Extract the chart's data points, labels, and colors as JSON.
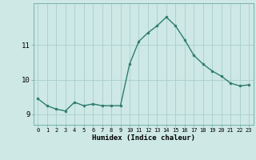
{
  "x": [
    0,
    1,
    2,
    3,
    4,
    5,
    6,
    7,
    8,
    9,
    10,
    11,
    12,
    13,
    14,
    15,
    16,
    17,
    18,
    19,
    20,
    21,
    22,
    23
  ],
  "y": [
    9.45,
    9.25,
    9.15,
    9.1,
    9.35,
    9.25,
    9.3,
    9.25,
    9.25,
    9.25,
    10.45,
    11.1,
    11.35,
    11.55,
    11.8,
    11.55,
    11.15,
    10.7,
    10.45,
    10.25,
    10.1,
    9.9,
    9.82,
    9.85
  ],
  "line_color": "#2e7d6e",
  "marker_color": "#2e7d6e",
  "bg_color": "#cde8e5",
  "grid_color": "#a8d0cc",
  "xlabel": "Humidex (Indice chaleur)",
  "ylabel": "",
  "title": "",
  "ylim": [
    8.7,
    12.2
  ],
  "yticks": [
    9,
    10,
    11
  ],
  "xticks": [
    0,
    1,
    2,
    3,
    4,
    5,
    6,
    7,
    8,
    9,
    10,
    11,
    12,
    13,
    14,
    15,
    16,
    17,
    18,
    19,
    20,
    21,
    22,
    23
  ],
  "xlim": [
    -0.5,
    23.5
  ]
}
